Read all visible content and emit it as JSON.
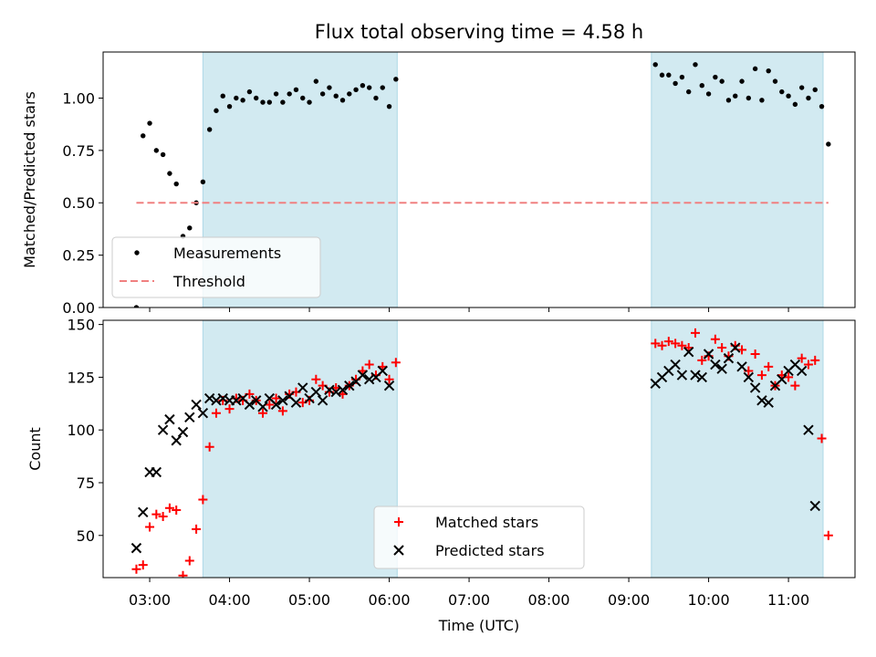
{
  "title": "Flux total observing time = 4.58 h",
  "chart_data": [
    {
      "type": "scatter",
      "ylabel": "Matched/Predicted stars",
      "xlim": [
        "02:25",
        "11:50"
      ],
      "ylim": [
        0,
        1.22
      ],
      "yticks": [
        "0.00",
        "0.25",
        "0.50",
        "0.75",
        "1.00"
      ],
      "grid": false,
      "legend_position": "lower-left",
      "shaded_intervals": [
        [
          "03:40",
          "06:06"
        ],
        [
          "09:17",
          "11:26"
        ]
      ],
      "shade_color": "#add8e6",
      "series": [
        {
          "name": "Measurements",
          "color": "#000000",
          "marker": "dot",
          "points": [
            [
              "02:50",
              0.0
            ],
            [
              "02:55",
              0.82
            ],
            [
              "03:00",
              0.88
            ],
            [
              "03:05",
              0.75
            ],
            [
              "03:10",
              0.73
            ],
            [
              "03:15",
              0.64
            ],
            [
              "03:20",
              0.59
            ],
            [
              "03:25",
              0.34
            ],
            [
              "03:30",
              0.38
            ],
            [
              "03:35",
              0.5
            ],
            [
              "03:40",
              0.6
            ],
            [
              "03:45",
              0.85
            ],
            [
              "03:50",
              0.94
            ],
            [
              "03:55",
              1.01
            ],
            [
              "04:00",
              0.96
            ],
            [
              "04:05",
              1.0
            ],
            [
              "04:10",
              0.99
            ],
            [
              "04:15",
              1.03
            ],
            [
              "04:20",
              1.0
            ],
            [
              "04:25",
              0.98
            ],
            [
              "04:30",
              0.98
            ],
            [
              "04:35",
              1.02
            ],
            [
              "04:40",
              0.98
            ],
            [
              "04:45",
              1.02
            ],
            [
              "04:50",
              1.04
            ],
            [
              "04:55",
              1.0
            ],
            [
              "05:00",
              0.98
            ],
            [
              "05:05",
              1.08
            ],
            [
              "05:10",
              1.02
            ],
            [
              "05:15",
              1.05
            ],
            [
              "05:20",
              1.01
            ],
            [
              "05:25",
              0.99
            ],
            [
              "05:30",
              1.02
            ],
            [
              "05:35",
              1.04
            ],
            [
              "05:40",
              1.06
            ],
            [
              "05:45",
              1.05
            ],
            [
              "05:50",
              1.0
            ],
            [
              "05:55",
              1.05
            ],
            [
              "06:00",
              0.96
            ],
            [
              "06:05",
              1.09
            ],
            [
              "09:20",
              1.16
            ],
            [
              "09:25",
              1.11
            ],
            [
              "09:30",
              1.11
            ],
            [
              "09:35",
              1.07
            ],
            [
              "09:40",
              1.1
            ],
            [
              "09:45",
              1.03
            ],
            [
              "09:50",
              1.16
            ],
            [
              "09:55",
              1.06
            ],
            [
              "10:00",
              1.02
            ],
            [
              "10:05",
              1.1
            ],
            [
              "10:10",
              1.08
            ],
            [
              "10:15",
              0.99
            ],
            [
              "10:20",
              1.01
            ],
            [
              "10:25",
              1.08
            ],
            [
              "10:30",
              1.0
            ],
            [
              "10:35",
              1.14
            ],
            [
              "10:40",
              0.99
            ],
            [
              "10:45",
              1.13
            ],
            [
              "10:50",
              1.08
            ],
            [
              "10:55",
              1.03
            ],
            [
              "11:00",
              1.01
            ],
            [
              "11:05",
              0.97
            ],
            [
              "11:10",
              1.05
            ],
            [
              "11:15",
              1.0
            ],
            [
              "11:20",
              1.04
            ],
            [
              "11:25",
              0.96
            ],
            [
              "11:30",
              0.78
            ]
          ]
        },
        {
          "name": "Threshold",
          "color": "#f08080",
          "line": "dashed",
          "points": [
            [
              "02:50",
              0.5
            ],
            [
              "11:30",
              0.5
            ]
          ]
        }
      ]
    },
    {
      "type": "scatter",
      "xlabel": "Time (UTC)",
      "ylabel": "Count",
      "xlim": [
        "02:25",
        "11:50"
      ],
      "ylim": [
        30,
        152
      ],
      "yticks": [
        "50",
        "75",
        "100",
        "125",
        "150"
      ],
      "xticks": [
        "03:00",
        "04:00",
        "05:00",
        "06:00",
        "07:00",
        "08:00",
        "09:00",
        "10:00",
        "11:00"
      ],
      "grid": false,
      "legend_position": "lower-center",
      "shaded_intervals": [
        [
          "03:40",
          "06:06"
        ],
        [
          "09:17",
          "11:26"
        ]
      ],
      "shade_color": "#add8e6",
      "series": [
        {
          "name": "Matched stars",
          "color": "#ff0000",
          "marker": "plus",
          "points": [
            [
              "02:50",
              34
            ],
            [
              "02:55",
              36
            ],
            [
              "03:00",
              54
            ],
            [
              "03:05",
              60
            ],
            [
              "03:10",
              59
            ],
            [
              "03:15",
              63
            ],
            [
              "03:20",
              62
            ],
            [
              "03:25",
              31
            ],
            [
              "03:30",
              38
            ],
            [
              "03:35",
              53
            ],
            [
              "03:40",
              67
            ],
            [
              "03:45",
              92
            ],
            [
              "03:50",
              108
            ],
            [
              "03:55",
              114
            ],
            [
              "04:00",
              110
            ],
            [
              "04:05",
              115
            ],
            [
              "04:10",
              114
            ],
            [
              "04:15",
              117
            ],
            [
              "04:20",
              114
            ],
            [
              "04:25",
              108
            ],
            [
              "04:30",
              112
            ],
            [
              "04:35",
              115
            ],
            [
              "04:40",
              109
            ],
            [
              "04:45",
              117
            ],
            [
              "04:50",
              118
            ],
            [
              "04:55",
              113
            ],
            [
              "05:00",
              114
            ],
            [
              "05:05",
              124
            ],
            [
              "05:10",
              121
            ],
            [
              "05:15",
              118
            ],
            [
              "05:20",
              120
            ],
            [
              "05:25",
              117
            ],
            [
              "05:30",
              121
            ],
            [
              "05:35",
              124
            ],
            [
              "05:40",
              128
            ],
            [
              "05:45",
              131
            ],
            [
              "05:50",
              126
            ],
            [
              "05:55",
              130
            ],
            [
              "06:00",
              124
            ],
            [
              "06:05",
              132
            ],
            [
              "09:20",
              141
            ],
            [
              "09:25",
              140
            ],
            [
              "09:30",
              142
            ],
            [
              "09:35",
              141
            ],
            [
              "09:40",
              140
            ],
            [
              "09:45",
              139
            ],
            [
              "09:50",
              146
            ],
            [
              "09:55",
              133
            ],
            [
              "10:00",
              135
            ],
            [
              "10:05",
              143
            ],
            [
              "10:10",
              139
            ],
            [
              "10:15",
              135
            ],
            [
              "10:20",
              140
            ],
            [
              "10:25",
              138
            ],
            [
              "10:30",
              128
            ],
            [
              "10:35",
              136
            ],
            [
              "10:40",
              126
            ],
            [
              "10:45",
              130
            ],
            [
              "10:50",
              121
            ],
            [
              "10:55",
              126
            ],
            [
              "11:00",
              125
            ],
            [
              "11:05",
              121
            ],
            [
              "11:10",
              134
            ],
            [
              "11:15",
              131
            ],
            [
              "11:20",
              133
            ],
            [
              "11:25",
              96
            ],
            [
              "11:30",
              50
            ]
          ]
        },
        {
          "name": "Predicted stars",
          "color": "#000000",
          "marker": "x",
          "points": [
            [
              "02:50",
              44
            ],
            [
              "02:55",
              61
            ],
            [
              "03:00",
              80
            ],
            [
              "03:05",
              80
            ],
            [
              "03:10",
              100
            ],
            [
              "03:15",
              105
            ],
            [
              "03:20",
              95
            ],
            [
              "03:25",
              99
            ],
            [
              "03:30",
              106
            ],
            [
              "03:35",
              112
            ],
            [
              "03:40",
              108
            ],
            [
              "03:45",
              115
            ],
            [
              "03:50",
              114
            ],
            [
              "03:55",
              115
            ],
            [
              "04:00",
              114
            ],
            [
              "04:05",
              114
            ],
            [
              "04:10",
              115
            ],
            [
              "04:15",
              112
            ],
            [
              "04:20",
              114
            ],
            [
              "04:25",
              111
            ],
            [
              "04:30",
              115
            ],
            [
              "04:35",
              112
            ],
            [
              "04:40",
              114
            ],
            [
              "04:45",
              116
            ],
            [
              "04:50",
              113
            ],
            [
              "04:55",
              120
            ],
            [
              "05:00",
              115
            ],
            [
              "05:05",
              118
            ],
            [
              "05:10",
              114
            ],
            [
              "05:15",
              119
            ],
            [
              "05:20",
              118
            ],
            [
              "05:25",
              119
            ],
            [
              "05:30",
              121
            ],
            [
              "05:35",
              123
            ],
            [
              "05:40",
              126
            ],
            [
              "05:45",
              124
            ],
            [
              "05:50",
              125
            ],
            [
              "05:55",
              128
            ],
            [
              "06:00",
              121
            ],
            [
              "09:20",
              122
            ],
            [
              "09:25",
              125
            ],
            [
              "09:30",
              128
            ],
            [
              "09:35",
              131
            ],
            [
              "09:40",
              126
            ],
            [
              "09:45",
              137
            ],
            [
              "09:50",
              126
            ],
            [
              "09:55",
              125
            ],
            [
              "10:00",
              136
            ],
            [
              "10:05",
              131
            ],
            [
              "10:10",
              129
            ],
            [
              "10:15",
              134
            ],
            [
              "10:20",
              139
            ],
            [
              "10:25",
              130
            ],
            [
              "10:30",
              125
            ],
            [
              "10:35",
              120
            ],
            [
              "10:40",
              114
            ],
            [
              "10:45",
              113
            ],
            [
              "10:50",
              121
            ],
            [
              "10:55",
              124
            ],
            [
              "11:00",
              128
            ],
            [
              "11:05",
              131
            ],
            [
              "11:10",
              128
            ],
            [
              "11:15",
              100
            ],
            [
              "11:20",
              64
            ]
          ]
        }
      ]
    }
  ]
}
